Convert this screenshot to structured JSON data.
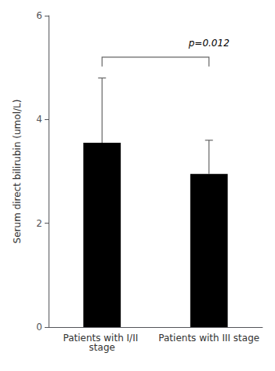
{
  "chart_data": {
    "type": "bar",
    "categories": [
      "Patients with I/II stage",
      "Patients with III stage"
    ],
    "values": [
      3.55,
      2.95
    ],
    "errors_up": [
      1.25,
      0.65
    ],
    "color": "#000000",
    "error_color": "#666666",
    "ylabel": "Serum direct bilirubin (umol/L)",
    "ylim": [
      0,
      6
    ],
    "yticks": [
      0,
      2,
      4,
      6
    ],
    "grid": false,
    "annotation": {
      "text": "p=0.012",
      "y": 5.38,
      "bracket_y": 5.2,
      "bracket_drop": 0.18
    }
  }
}
